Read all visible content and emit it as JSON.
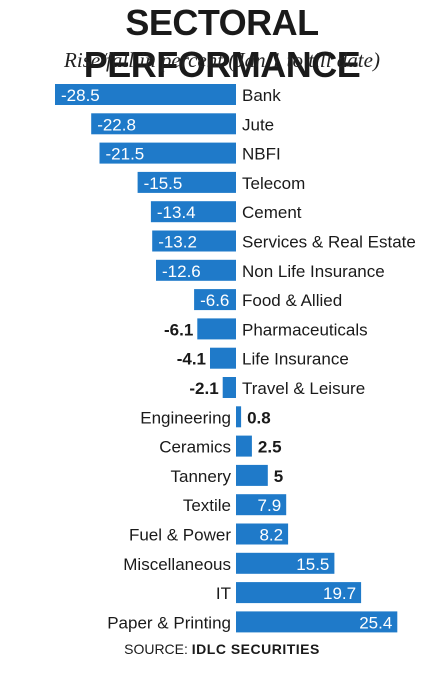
{
  "title": "SECTORAL PERFORMANCE",
  "subtitle": "Rise/fall in percent (Jan 1 to till date)",
  "source": {
    "label": "SOURCE:",
    "name": "IDLC SECURITIES"
  },
  "colors": {
    "bar": "#1f7ac9",
    "text": "#1a1a1a",
    "label_on_bar": "#ffffff"
  },
  "chart_data": {
    "type": "bar",
    "orientation": "horizontal",
    "title": "SECTORAL PERFORMANCE",
    "subtitle": "Rise/fall in percent (Jan 1 to till date)",
    "categories": [
      "Bank",
      "Jute",
      "NBFI",
      "Telecom",
      "Cement",
      "Services & Real Estate",
      "Non Life Insurance",
      "Food & Allied",
      "Pharmaceuticals",
      "Life Insurance",
      "Travel & Leisure",
      "Engineering",
      "Ceramics",
      "Tannery",
      "Textile",
      "Fuel & Power",
      "Miscellaneous",
      "IT",
      "Paper & Printing"
    ],
    "values": [
      -28.5,
      -22.8,
      -21.5,
      -15.5,
      -13.4,
      -13.2,
      -12.6,
      -6.6,
      -6.1,
      -4.1,
      -2.1,
      0.8,
      2.5,
      5,
      7.9,
      8.2,
      15.5,
      19.7,
      25.4
    ],
    "value_labels": [
      "-28.5",
      "-22.8",
      "-21.5",
      "-15.5",
      "-13.4",
      "-13.2",
      "-12.6",
      "-6.6",
      "-6.1",
      "-4.1",
      "-2.1",
      "0.8",
      "2.5",
      "5",
      "7.9",
      "8.2",
      "15.5",
      "19.7",
      "25.4"
    ],
    "xlim": [
      -30,
      30
    ],
    "grid": false,
    "legend": "none"
  }
}
